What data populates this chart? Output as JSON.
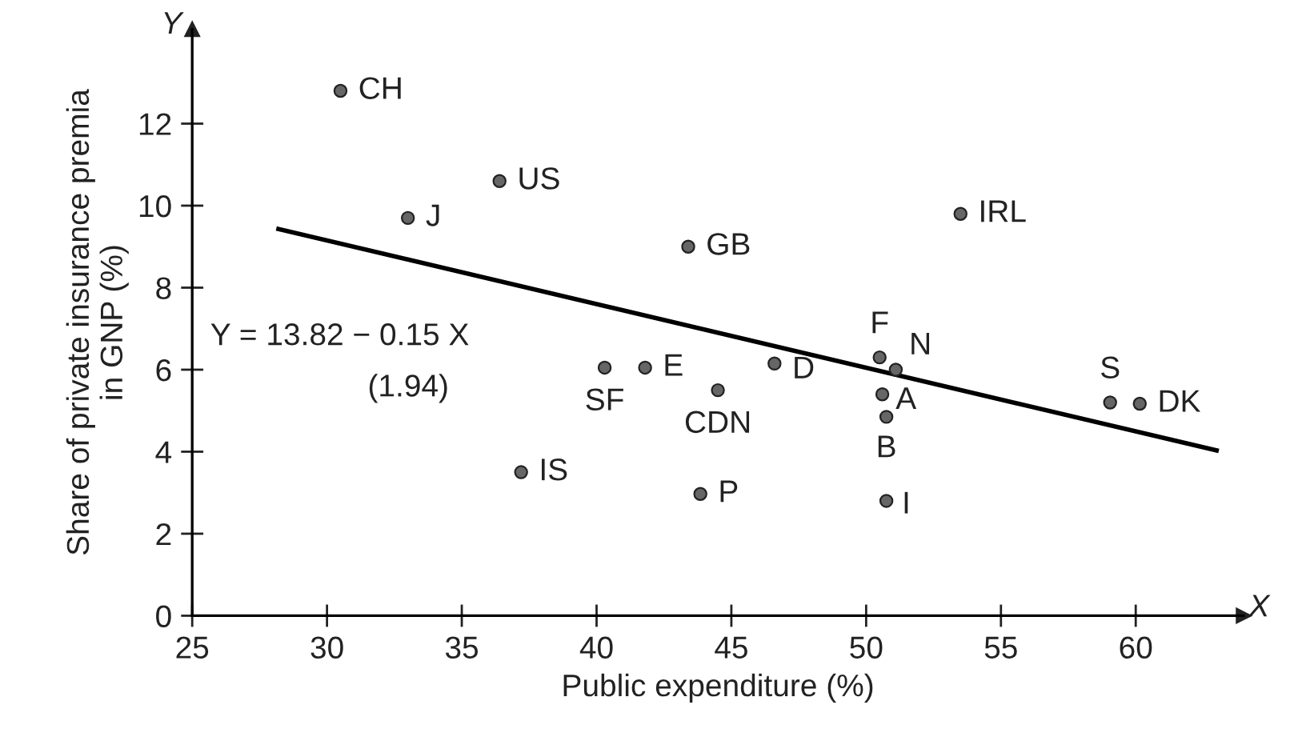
{
  "chart_data": {
    "type": "scatter",
    "xlabel": "Public expenditure (%)",
    "ylabel": "Share of private insurance premia\nin GNP (%)",
    "xlim": [
      25,
      64
    ],
    "ylim": [
      0,
      14.3
    ],
    "xticks": [
      25,
      30,
      35,
      40,
      45,
      50,
      55,
      60
    ],
    "yticks": [
      0,
      2,
      4,
      6,
      8,
      10,
      12
    ],
    "grid": false,
    "legend": false,
    "series": [
      {
        "color": "#666666",
        "marker": "circle",
        "x": [
          30.5,
          33.0,
          36.4,
          43.4,
          40.3,
          41.8,
          44.5,
          37.2,
          43.85,
          46.6,
          50.5,
          51.1,
          50.6,
          50.75,
          50.75,
          53.5,
          59.05,
          60.15
        ],
        "values": [
          12.8,
          9.7,
          10.6,
          9.0,
          6.05,
          6.05,
          5.5,
          3.5,
          2.97,
          6.15,
          6.3,
          6.0,
          5.4,
          4.85,
          2.8,
          9.8,
          5.2,
          5.17
        ]
      },
      {
        "type": "line",
        "color": "#000000",
        "line_style": "solid",
        "marker": "none",
        "x": [
          28.2,
          63.0
        ],
        "values": [
          9.43,
          4.03
        ]
      }
    ],
    "annotations": [
      {
        "text": "CH",
        "x": 30.5,
        "y": 12.8
      },
      {
        "text": "J",
        "x": 33.0,
        "y": 9.7
      },
      {
        "text": "US",
        "x": 36.4,
        "y": 10.6
      },
      {
        "text": "GB",
        "x": 43.4,
        "y": 9.0
      },
      {
        "text": "SF",
        "x": 40.3,
        "y": 6.05
      },
      {
        "text": "E",
        "x": 41.8,
        "y": 6.05
      },
      {
        "text": "CDN",
        "x": 44.5,
        "y": 5.5
      },
      {
        "text": "IS",
        "x": 37.2,
        "y": 3.5
      },
      {
        "text": "P",
        "x": 43.85,
        "y": 2.97
      },
      {
        "text": "D",
        "x": 46.6,
        "y": 6.15
      },
      {
        "text": "F",
        "x": 50.5,
        "y": 6.3
      },
      {
        "text": "N",
        "x": 51.1,
        "y": 6.0
      },
      {
        "text": "A",
        "x": 50.6,
        "y": 5.4
      },
      {
        "text": "B",
        "x": 50.75,
        "y": 4.85
      },
      {
        "text": "I",
        "x": 50.75,
        "y": 2.8
      },
      {
        "text": "IRL",
        "x": 53.5,
        "y": 9.8
      },
      {
        "text": "S",
        "x": 59.05,
        "y": 5.2
      },
      {
        "text": "DK",
        "x": 60.15,
        "y": 5.17
      },
      "Y = 13.82 − 0.15 X",
      "(1.94)",
      "X",
      "Y"
    ]
  }
}
